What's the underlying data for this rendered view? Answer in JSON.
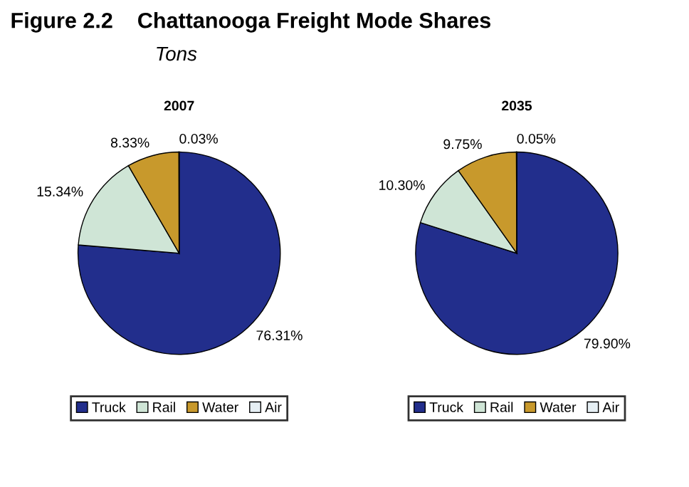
{
  "chart_data": [
    {
      "type": "pie",
      "title": "2007",
      "annotations": [
        "Figure 2.2    Chattanooga Freight Mode Shares",
        "Tons"
      ],
      "categories": [
        "Truck",
        "Rail",
        "Water",
        "Air"
      ],
      "values": [
        76.31,
        15.34,
        8.33,
        0.03
      ],
      "value_labels": [
        "76.31%",
        "15.34%",
        "8.33%",
        "0.03%"
      ],
      "colors": [
        "#222e8c",
        "#cfe5d6",
        "#c8992c",
        "#e6eff4"
      ],
      "legend": "bottom"
    },
    {
      "type": "pie",
      "title": "2035",
      "categories": [
        "Truck",
        "Rail",
        "Water",
        "Air"
      ],
      "values": [
        79.9,
        10.3,
        9.75,
        0.05
      ],
      "value_labels": [
        "79.90%",
        "10.30%",
        "9.75%",
        "0.05%"
      ],
      "colors": [
        "#222e8c",
        "#cfe5d6",
        "#c8992c",
        "#e6eff4"
      ],
      "legend": "bottom"
    }
  ]
}
